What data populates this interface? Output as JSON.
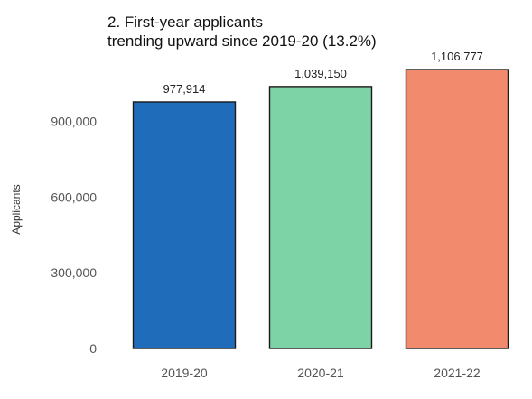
{
  "chart_data": {
    "type": "bar",
    "title": "2. First-year applicants",
    "subtitle": "trending upward since 2019-20 (13.2%)",
    "xlabel": "",
    "ylabel": "Applicants",
    "categories": [
      "2019-20",
      "2020-21",
      "2021-22"
    ],
    "values": [
      977914,
      1039150,
      1106777
    ],
    "value_labels": [
      "977,914",
      "1,039,150",
      "1,106,777"
    ],
    "colors": [
      "#1F6CBB",
      "#7ED3A6",
      "#F28A6E"
    ],
    "bar_outline_color": "#1a1a1a",
    "ylim": [
      0,
      1106777
    ],
    "yticks": [
      0,
      300000,
      600000,
      900000
    ],
    "ytick_labels": [
      "0",
      "300,000",
      "600,000",
      "900,000"
    ],
    "grid": false,
    "legend": "none"
  }
}
